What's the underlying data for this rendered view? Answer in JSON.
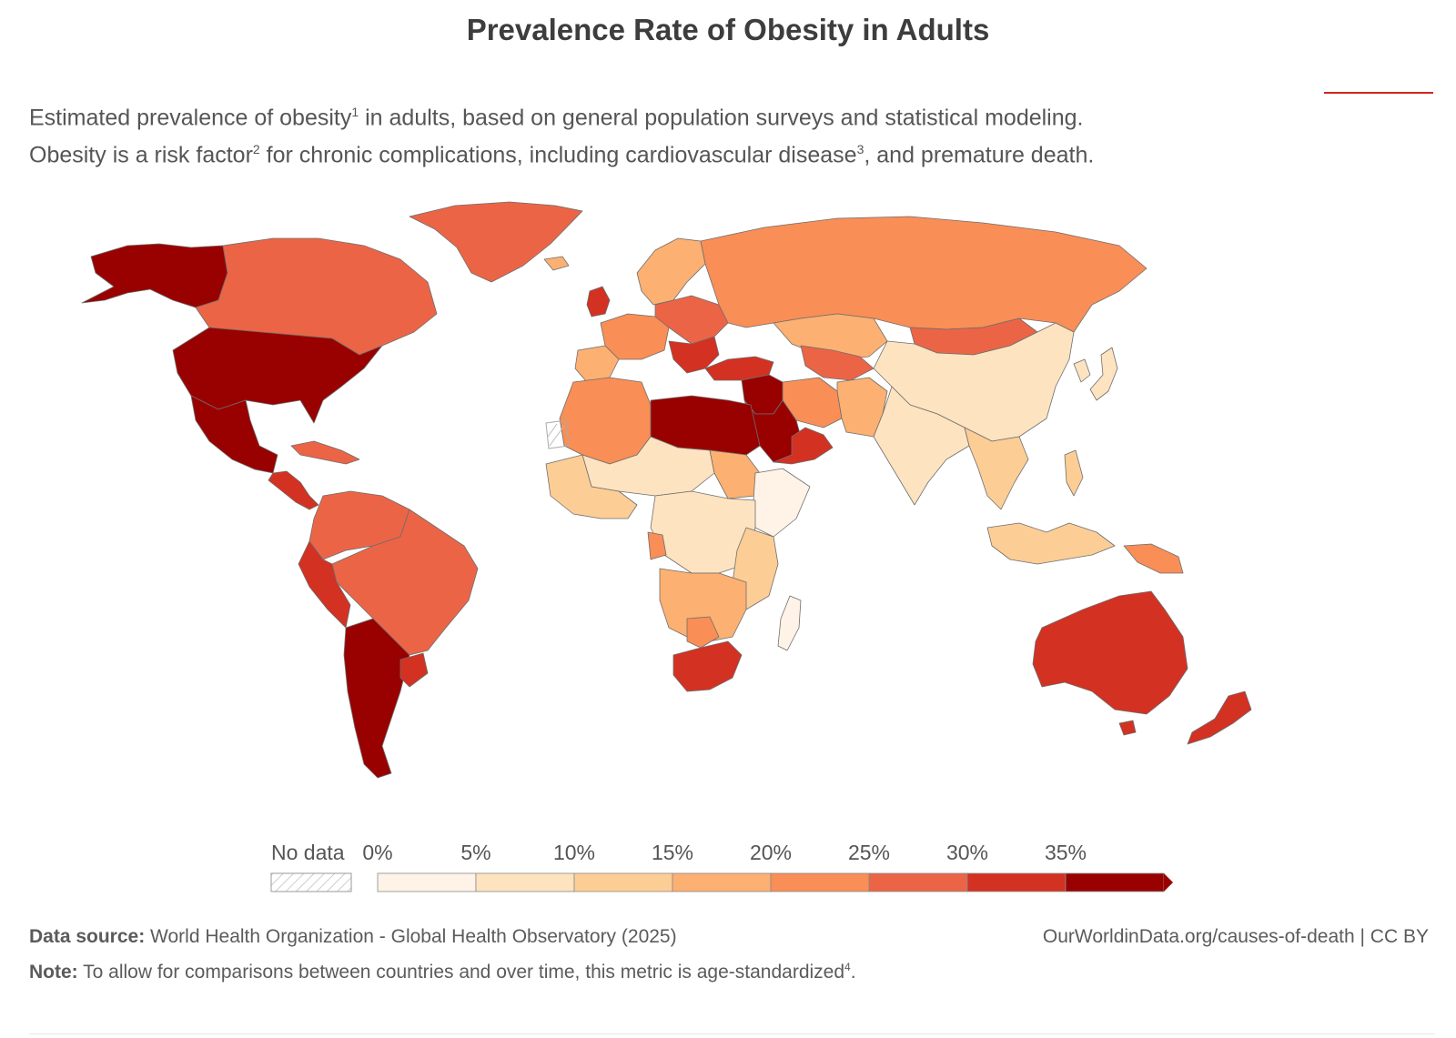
{
  "header": {
    "title": "Prevalence Rate of Obesity in Adults",
    "subtitle_line1_a": "Estimated prevalence of obesity",
    "subtitle_line1_sup": "1",
    "subtitle_line1_b": " in adults, based on general population surveys and statistical modeling.",
    "subtitle_line2_a": "Obesity is a risk factor",
    "subtitle_line2_sup1": "2",
    "subtitle_line2_b": " for chronic complications, including cardiovascular disease",
    "subtitle_line2_sup2": "3",
    "subtitle_line2_c": ", and premature death."
  },
  "legend": {
    "no_data_label": "No data",
    "ticks": [
      "0%",
      "5%",
      "10%",
      "15%",
      "20%",
      "25%",
      "30%",
      "35%"
    ],
    "bins": [
      {
        "from": 0,
        "to": 5,
        "color": "#fef3e6"
      },
      {
        "from": 5,
        "to": 10,
        "color": "#fde3c0"
      },
      {
        "from": 10,
        "to": 15,
        "color": "#fdcd96"
      },
      {
        "from": 15,
        "to": 20,
        "color": "#fcb072"
      },
      {
        "from": 20,
        "to": 25,
        "color": "#f98e56"
      },
      {
        "from": 25,
        "to": 30,
        "color": "#ec6446"
      },
      {
        "from": 30,
        "to": 35,
        "color": "#d33122"
      },
      {
        "from": 35,
        "to": 40,
        "color": "#990000"
      }
    ]
  },
  "map": {
    "regions": [
      {
        "name": "Alaska",
        "value_bin": 7
      },
      {
        "name": "Canada",
        "value_bin": 5
      },
      {
        "name": "Greenland",
        "value_bin": 5
      },
      {
        "name": "United States",
        "value_bin": 7
      },
      {
        "name": "Mexico",
        "value_bin": 7
      },
      {
        "name": "Central America",
        "value_bin": 6
      },
      {
        "name": "Caribbean",
        "value_bin": 5
      },
      {
        "name": "Northern South America",
        "value_bin": 5
      },
      {
        "name": "Brazil",
        "value_bin": 5
      },
      {
        "name": "Argentina and Chile",
        "value_bin": 7
      },
      {
        "name": "Uruguay",
        "value_bin": 6
      },
      {
        "name": "Western Europe",
        "value_bin": 4
      },
      {
        "name": "United Kingdom",
        "value_bin": 6
      },
      {
        "name": "Iberia",
        "value_bin": 3
      },
      {
        "name": "Scandinavia",
        "value_bin": 3
      },
      {
        "name": "Eastern Europe",
        "value_bin": 5
      },
      {
        "name": "Balkans",
        "value_bin": 6
      },
      {
        "name": "Russia",
        "value_bin": 4
      },
      {
        "name": "Turkey",
        "value_bin": 6
      },
      {
        "name": "Middle East",
        "value_bin": 7
      },
      {
        "name": "Saudi Arabia",
        "value_bin": 7
      },
      {
        "name": "Oman and Yemen",
        "value_bin": 6
      },
      {
        "name": "Iran",
        "value_bin": 4
      },
      {
        "name": "Kazakhstan",
        "value_bin": 3
      },
      {
        "name": "Central Asia",
        "value_bin": 5
      },
      {
        "name": "Afghanistan and Pakistan",
        "value_bin": 3
      },
      {
        "name": "South Asia",
        "value_bin": 1
      },
      {
        "name": "China",
        "value_bin": 1
      },
      {
        "name": "Mongolia",
        "value_bin": 5
      },
      {
        "name": "Korea",
        "value_bin": 1
      },
      {
        "name": "Japan",
        "value_bin": 1
      },
      {
        "name": "Southeast Asia",
        "value_bin": 2
      },
      {
        "name": "Indonesia",
        "value_bin": 2
      },
      {
        "name": "Papua New Guinea",
        "value_bin": 4
      },
      {
        "name": "Australia",
        "value_bin": 6
      },
      {
        "name": "New Zealand",
        "value_bin": 6
      },
      {
        "name": "Northwest Africa",
        "value_bin": 4
      },
      {
        "name": "Libya and Egypt",
        "value_bin": 7
      },
      {
        "name": "Sahel",
        "value_bin": 1
      },
      {
        "name": "West Africa",
        "value_bin": 2
      },
      {
        "name": "Sudan",
        "value_bin": 3
      },
      {
        "name": "Horn of Africa",
        "value_bin": 0
      },
      {
        "name": "Central Africa",
        "value_bin": 1
      },
      {
        "name": "Gabon",
        "value_bin": 4
      },
      {
        "name": "East Africa",
        "value_bin": 2
      },
      {
        "name": "Southern Africa",
        "value_bin": 3
      },
      {
        "name": "Botswana",
        "value_bin": 4
      },
      {
        "name": "South Africa",
        "value_bin": 6
      },
      {
        "name": "Madagascar",
        "value_bin": 0
      }
    ]
  },
  "footer": {
    "source_label": "Data source:",
    "source_text": " World Health Organization - Global Health Observatory (2025)",
    "site": "OurWorldinData.org/causes-of-death | CC BY",
    "note_label": "Note:",
    "note_text": " To allow for comparisons between countries and over time, this metric is age-standardized",
    "note_sup": "4",
    "note_end": "."
  }
}
